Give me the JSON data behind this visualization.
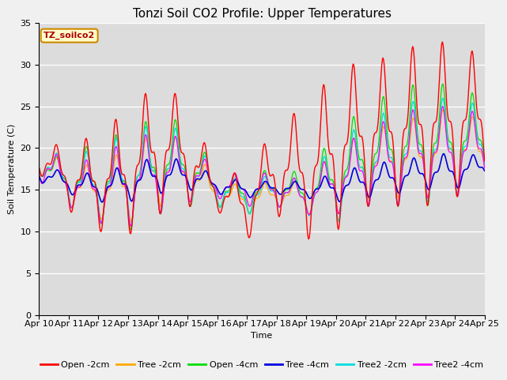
{
  "title": "Tonzi Soil CO2 Profile: Upper Temperatures",
  "xlabel": "Time",
  "ylabel": "Soil Temperature (C)",
  "ylim": [
    0,
    35
  ],
  "yticks": [
    0,
    5,
    10,
    15,
    20,
    25,
    30,
    35
  ],
  "xtick_labels": [
    "Apr 10",
    "Apr 11",
    "Apr 12",
    "Apr 13",
    "Apr 14",
    "Apr 15",
    "Apr 16",
    "Apr 17",
    "Apr 18",
    "Apr 19",
    "Apr 20",
    "Apr 21",
    "Apr 22",
    "Apr 23",
    "Apr 24",
    "Apr 25"
  ],
  "watermark": "TZ_soilco2",
  "series_colors": {
    "Open -2cm": "#ff0000",
    "Tree -2cm": "#ffaa00",
    "Open -4cm": "#00dd00",
    "Tree -4cm": "#0000dd",
    "Tree2 -2cm": "#00dddd",
    "Tree2 -4cm": "#ff00ff"
  },
  "plot_bg": "#dcdcdc",
  "fig_bg": "#f0f0f0",
  "title_fontsize": 11,
  "axis_fontsize": 8,
  "tick_fontsize": 8,
  "legend_fontsize": 8
}
